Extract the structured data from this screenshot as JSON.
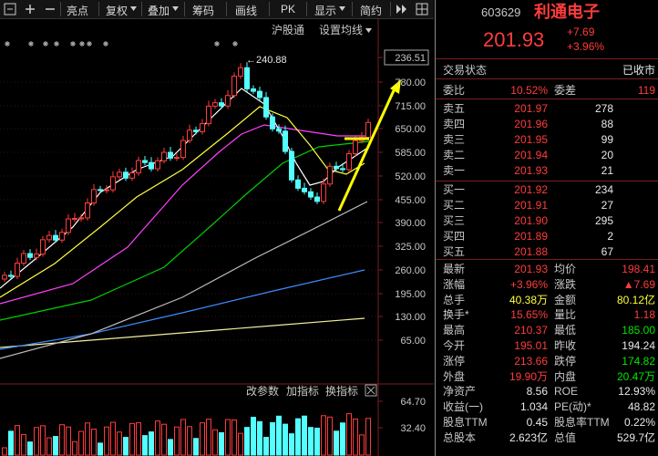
{
  "toolbar": {
    "items": [
      "亮点",
      "复权",
      "叠加",
      "筹码",
      "画线",
      "PK",
      "显示",
      "简约"
    ]
  },
  "chart": {
    "tabs": [
      "沪股通",
      "设置均线"
    ],
    "price_labels": [
      "236.51",
      "780.00",
      "715.00",
      "650.00",
      "585.00",
      "520.00",
      "455.00",
      "390.00",
      "325.00",
      "260.00",
      "195.00",
      "130.00",
      "65.00"
    ],
    "high_marker": "←240.88",
    "indicator_tabs": [
      "改参数",
      "加指标",
      "换指标"
    ],
    "volume_labels": [
      "64.70",
      "32.40"
    ]
  },
  "quote": {
    "code": "603629",
    "name": "利通电子",
    "price": "201.93",
    "change": "+7.69",
    "change_pct": "+3.96%"
  },
  "status": {
    "label": "交易状态",
    "value": "已收市"
  },
  "commission": {
    "ratio_label": "委比",
    "ratio": "10.52%",
    "diff_label": "委差",
    "diff": "119"
  },
  "asks": [
    [
      "卖五",
      "201.97",
      "278"
    ],
    [
      "卖四",
      "201.96",
      "88"
    ],
    [
      "卖三",
      "201.95",
      "99"
    ],
    [
      "卖二",
      "201.94",
      "20"
    ],
    [
      "卖一",
      "201.93",
      "21"
    ]
  ],
  "bids": [
    [
      "买一",
      "201.92",
      "234"
    ],
    [
      "买二",
      "201.91",
      "27"
    ],
    [
      "买三",
      "201.90",
      "295"
    ],
    [
      "买四",
      "201.89",
      "2"
    ],
    [
      "买五",
      "201.88",
      "67"
    ]
  ],
  "stats": [
    [
      "最新",
      "201.93",
      "均价",
      "198.41"
    ],
    [
      "涨幅",
      "+3.96%",
      "涨跌",
      "▲7.69"
    ],
    [
      "总手",
      "40.38万",
      "金额",
      "80.12亿"
    ],
    [
      "换手*",
      "15.65%",
      "量比",
      "1.18"
    ],
    [
      "最高",
      "210.37",
      "最低",
      "185.00"
    ],
    [
      "今开",
      "195.01",
      "昨收",
      "194.24"
    ],
    [
      "涨停",
      "213.66",
      "跌停",
      "174.82"
    ],
    [
      "外盘",
      "19.90万",
      "内盘",
      "20.47万"
    ],
    [
      "净资产",
      "8.56",
      "ROE",
      "12.93%"
    ],
    [
      "收益(一)",
      "1.034",
      "PE(动)*",
      "48.82"
    ],
    [
      "股息TTM",
      "0.45",
      "股息率TTM",
      "0.22%"
    ],
    [
      "总股本",
      "2.623亿",
      "总值",
      "529.7亿"
    ]
  ]
}
